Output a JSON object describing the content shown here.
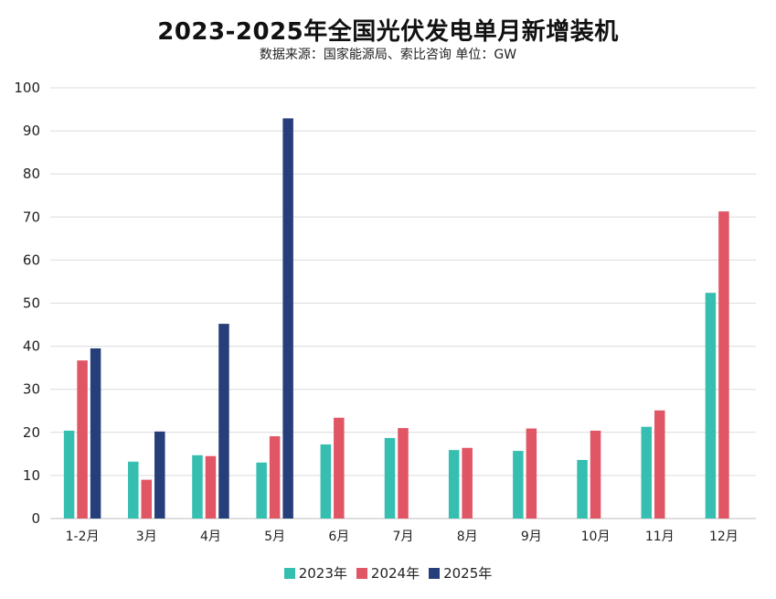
{
  "chart_data": {
    "type": "bar",
    "title": "2023-2025年全国光伏发电单月新增装机",
    "subtitle": "数据来源：国家能源局、索比咨询    单位：GW",
    "xlabel": "",
    "ylabel": "",
    "ylim": [
      0,
      100
    ],
    "yticks": [
      0,
      10,
      20,
      30,
      40,
      50,
      60,
      70,
      80,
      90,
      100
    ],
    "categories": [
      "1-2月",
      "3月",
      "4月",
      "5月",
      "6月",
      "7月",
      "8月",
      "9月",
      "10月",
      "11月",
      "12月"
    ],
    "series": [
      {
        "name": "2023年",
        "color": "#36bfb1",
        "values": [
          20.4,
          13.2,
          14.7,
          13.0,
          17.2,
          18.7,
          15.9,
          15.7,
          13.6,
          21.3,
          52.4
        ]
      },
      {
        "name": "2024年",
        "color": "#e05665",
        "values": [
          36.7,
          9.0,
          14.5,
          19.1,
          23.4,
          21.0,
          16.4,
          20.9,
          20.4,
          25.1,
          71.3
        ]
      },
      {
        "name": "2025年",
        "color": "#263f7a",
        "values": [
          39.5,
          20.2,
          45.2,
          92.9,
          null,
          null,
          null,
          null,
          null,
          null,
          null
        ]
      }
    ],
    "legend_position": "bottom-center",
    "grid": true
  }
}
